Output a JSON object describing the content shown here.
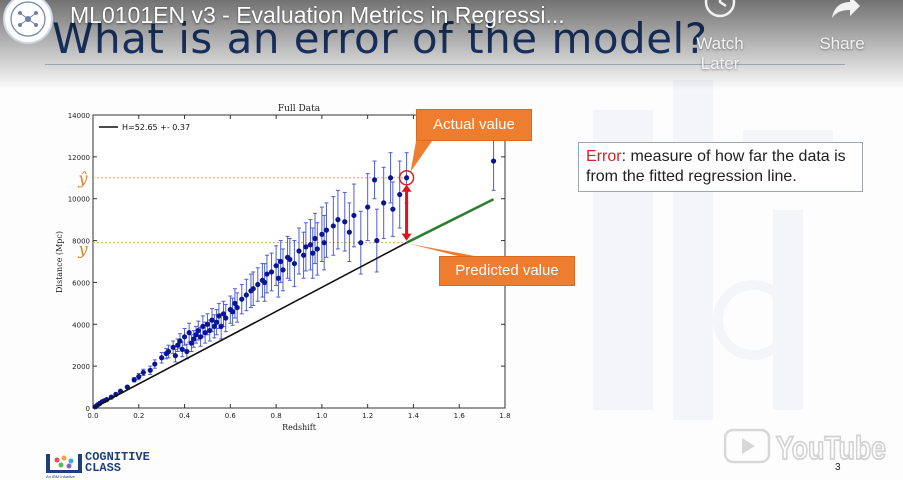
{
  "youtube": {
    "video_title": "ML0101EN v3 - Evaluation Metrics in Regressi...",
    "watch_later_label": "Watch Later",
    "share_label": "Share",
    "logo_text": "YouTube"
  },
  "slide": {
    "title": "What is an error of the model?",
    "page_number": "3",
    "actual_callout": "Actual value",
    "predicted_callout": "Predicted value",
    "error_term": "Error",
    "error_definition": ": measure of how far the data is from the fitted regression line."
  },
  "branding": {
    "line1": "COGNITIVE",
    "line2": "CLASS",
    "sub": "An IBM Initiative"
  },
  "chart_data": {
    "type": "scatter",
    "title": "Full Data",
    "xlabel": "Redshift",
    "ylabel": "Distance (Mpc)",
    "xlim": [
      0.0,
      1.8
    ],
    "ylim": [
      0,
      14000
    ],
    "x_ticks": [
      "0.0",
      "0.2",
      "0.4",
      "0.6",
      "0.8",
      "1.0",
      "1.2",
      "1.4",
      "1.6",
      "1.8"
    ],
    "y_ticks": [
      "0",
      "2000",
      "4000",
      "6000",
      "8000",
      "10000",
      "12000",
      "14000"
    ],
    "legend": "H=52.65 +- 0.37",
    "y_hat_label": "ŷ",
    "y_label": "y",
    "actual_point": {
      "x": 1.37,
      "y": 11000
    },
    "predicted_point": {
      "x": 1.37,
      "y": 7900
    },
    "fit_line": {
      "slope": 5700,
      "x0": 0.0,
      "x1": 1.75
    },
    "series": [
      {
        "x": [
          0.01,
          0.02,
          0.03,
          0.04,
          0.05,
          0.06,
          0.08,
          0.1,
          0.12,
          0.15,
          0.18,
          0.2,
          0.22,
          0.25,
          0.27,
          0.3,
          0.32,
          0.33,
          0.35,
          0.36,
          0.37,
          0.38,
          0.39,
          0.4,
          0.41,
          0.42,
          0.43,
          0.44,
          0.45,
          0.46,
          0.47,
          0.48,
          0.49,
          0.5,
          0.51,
          0.52,
          0.53,
          0.54,
          0.55,
          0.56,
          0.57,
          0.58,
          0.6,
          0.61,
          0.62,
          0.63,
          0.65,
          0.67,
          0.69,
          0.7,
          0.72,
          0.74,
          0.75,
          0.76,
          0.78,
          0.8,
          0.81,
          0.82,
          0.83,
          0.85,
          0.86,
          0.88,
          0.9,
          0.92,
          0.93,
          0.95,
          0.96,
          0.97,
          0.98,
          1.0,
          1.01,
          1.02,
          1.05,
          1.07,
          1.1,
          1.12,
          1.14,
          1.17,
          1.2,
          1.23,
          1.24,
          1.27,
          1.3,
          1.31,
          1.34,
          1.37,
          1.75
        ],
        "y": [
          60,
          150,
          220,
          300,
          350,
          400,
          520,
          650,
          800,
          1000,
          1350,
          1500,
          1700,
          1800,
          2100,
          2400,
          2600,
          2700,
          2900,
          2500,
          3000,
          3200,
          2800,
          3400,
          2700,
          3600,
          3100,
          3300,
          3500,
          3700,
          3400,
          3900,
          3600,
          4000,
          3700,
          4200,
          3900,
          4100,
          4400,
          3900,
          4500,
          4300,
          4700,
          4600,
          5000,
          4800,
          5200,
          5400,
          5600,
          5700,
          5900,
          6100,
          6000,
          6400,
          6500,
          6800,
          6200,
          7000,
          6600,
          7200,
          7100,
          6900,
          7500,
          7300,
          7700,
          7800,
          7400,
          8100,
          7600,
          8300,
          7900,
          8500,
          8700,
          9000,
          8900,
          8400,
          9200,
          7900,
          9600,
          10900,
          8000,
          9800,
          11000,
          9500,
          10200,
          11000,
          11800
        ]
      }
    ],
    "y_error": [
      0,
      0,
      0,
      0,
      0,
      0,
      0,
      0,
      0,
      0,
      100,
      150,
      150,
      200,
      200,
      250,
      250,
      300,
      300,
      300,
      300,
      350,
      350,
      400,
      350,
      450,
      400,
      400,
      400,
      450,
      450,
      500,
      500,
      500,
      500,
      550,
      550,
      600,
      600,
      600,
      600,
      650,
      650,
      650,
      700,
      700,
      700,
      750,
      800,
      800,
      800,
      800,
      900,
      900,
      900,
      950,
      900,
      1000,
      1000,
      1000,
      1000,
      1100,
      1100,
      1100,
      1150,
      1200,
      1200,
      1200,
      1250,
      1300,
      1300,
      1300,
      1400,
      1400,
      1400,
      1400,
      1500,
      1500,
      1600,
      900,
      1500,
      1700,
      1200,
      1300,
      1600,
      1200,
      1400
    ]
  }
}
